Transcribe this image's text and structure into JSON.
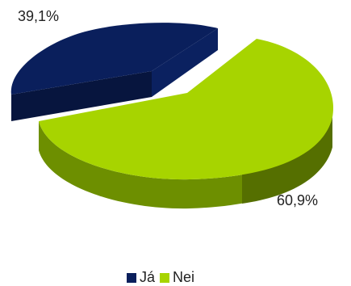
{
  "chart_data": {
    "type": "pie",
    "title": "",
    "series": [
      {
        "name": "Já",
        "value": 39.1,
        "label": "39,1%",
        "color": "#0a1f5c",
        "side_color": "#06143a"
      },
      {
        "name": "Nei",
        "value": 60.9,
        "label": "60,9%",
        "color": "#a7d400",
        "side_color": "#5d7a00"
      }
    ],
    "legend_position": "bottom",
    "style": "3d-exploded"
  }
}
